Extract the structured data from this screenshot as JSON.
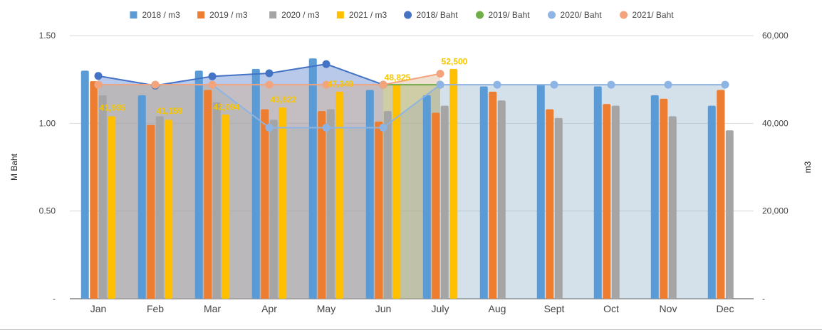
{
  "chart_data": {
    "type": "bar",
    "categories": [
      "Jan",
      "Feb",
      "Mar",
      "Apr",
      "May",
      "Jun",
      "July",
      "Aug",
      "Sept",
      "Oct",
      "Nov",
      "Dec"
    ],
    "left_axis": {
      "title": "M Baht",
      "ylim": [
        0,
        1.5
      ],
      "ticks": [
        0,
        0.5,
        1.0,
        1.5
      ],
      "tick_labels": [
        "-",
        "0.50",
        "1.00",
        "1.50"
      ]
    },
    "right_axis": {
      "title": "m3",
      "ylim": [
        0,
        60000
      ],
      "ticks": [
        0,
        20000,
        40000,
        60000
      ],
      "tick_labels": [
        "-",
        "20,000",
        "40,000",
        "60,000"
      ]
    },
    "legend_position": "top",
    "grid": true,
    "bar_series": [
      {
        "name": "2018 / m3",
        "color": "#5b9bd5",
        "values": [
          1.3,
          1.16,
          1.3,
          1.31,
          1.37,
          1.19,
          1.16,
          1.21,
          1.22,
          1.21,
          1.16,
          1.1
        ]
      },
      {
        "name": "2019 /  m3",
        "color": "#ed7d31",
        "values": [
          1.24,
          0.99,
          1.19,
          1.08,
          1.07,
          1.01,
          1.06,
          1.18,
          1.08,
          1.11,
          1.14,
          1.19
        ]
      },
      {
        "name": "2020 / m3",
        "color": "#a5a5a5",
        "values": [
          1.16,
          1.04,
          1.12,
          1.02,
          1.08,
          1.07,
          1.1,
          1.13,
          1.03,
          1.1,
          1.04,
          0.96
        ]
      },
      {
        "name": "2021 / m3",
        "color": "#ffc000",
        "values": [
          1.04,
          1.02,
          1.05,
          1.09,
          1.18,
          1.22,
          1.31,
          null,
          null,
          null,
          null,
          null
        ]
      }
    ],
    "line_series": [
      {
        "name": "2018/ Baht",
        "color": "#4472c4",
        "fill": "#4472c4",
        "values": [
          50800,
          48600,
          50700,
          51400,
          53500,
          48800,
          null,
          null,
          null,
          null,
          null,
          null
        ]
      },
      {
        "name": "2019/ Baht",
        "color": "#70ad47",
        "fill": "#70ad47",
        "values": [
          null,
          null,
          null,
          null,
          null,
          48800,
          48800,
          null,
          null,
          null,
          null,
          null
        ]
      },
      {
        "name": "2020/ Baht",
        "color": "#8eb4e3",
        "fill": "#8fb0c9",
        "values": [
          48800,
          48800,
          48800,
          39000,
          39000,
          39000,
          48800,
          48800,
          48800,
          48800,
          48800,
          48800
        ]
      },
      {
        "name": "2021/ Baht",
        "color": "#f4a47c",
        "fill": "#d8ad86",
        "values": [
          48800,
          48800,
          48800,
          48800,
          48800,
          48800,
          51300,
          null,
          null,
          null,
          null,
          null
        ]
      }
    ],
    "data_labels": [
      {
        "category": "Jan",
        "value": 41935,
        "text": "41,935"
      },
      {
        "category": "Feb",
        "value": 41159,
        "text": "41,159"
      },
      {
        "category": "Mar",
        "value": 42094,
        "text": "42,094"
      },
      {
        "category": "Apr",
        "value": 43822,
        "text": "43,822"
      },
      {
        "category": "May",
        "value": 47349,
        "text": "47,349"
      },
      {
        "category": "Jun",
        "value": 48825,
        "text": "48,825"
      },
      {
        "category": "July",
        "value": 52500,
        "text": "52,500"
      }
    ]
  }
}
